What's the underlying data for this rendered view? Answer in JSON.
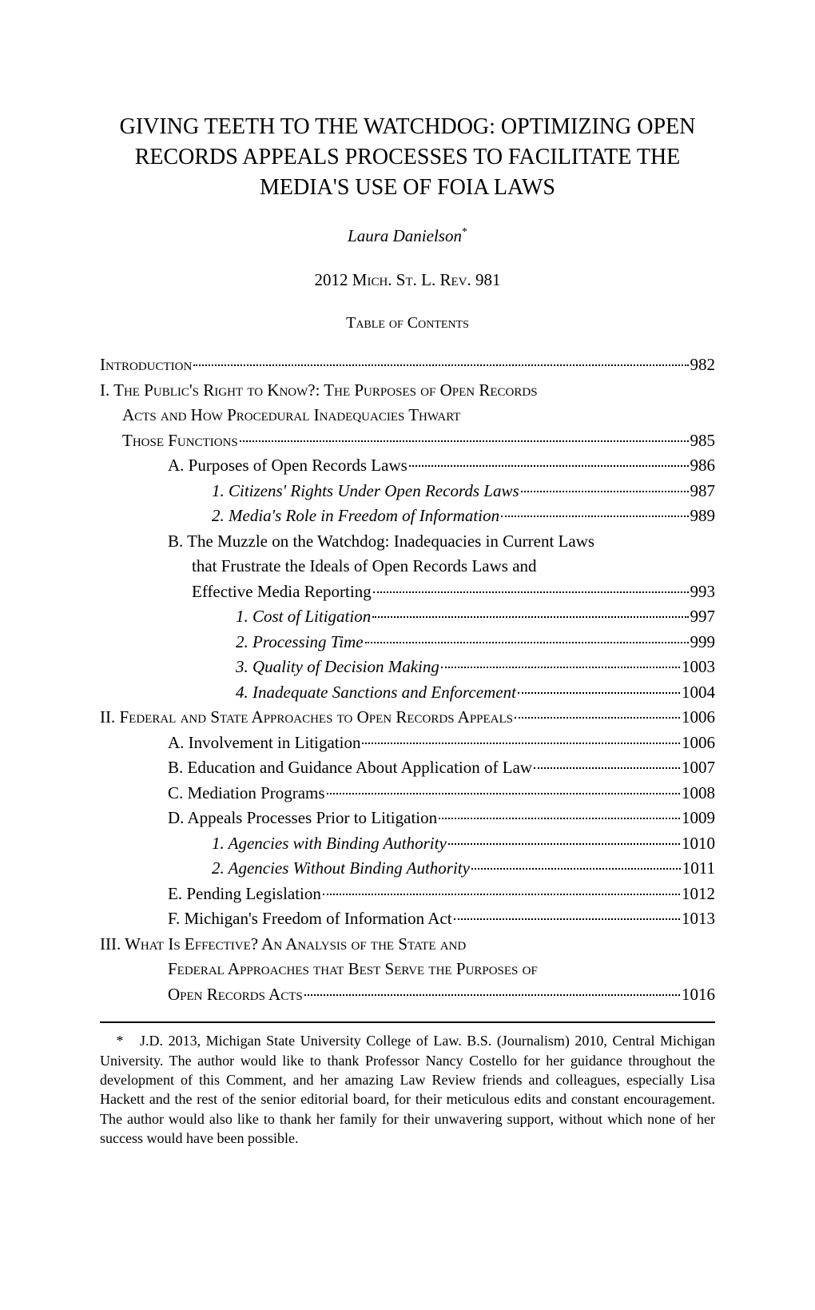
{
  "title": "GIVING TEETH TO THE WATCHDOG: OPTIMIZING OPEN RECORDS APPEALS PROCESSES TO FACILITATE THE MEDIA'S USE OF FOIA LAWS",
  "author": "Laura Danielson",
  "author_marker": "*",
  "citation_year": "2012",
  "citation_journal": "Mich. St. L. Rev.",
  "citation_page": "981",
  "toc_header": "Table of Contents",
  "toc": {
    "intro": {
      "label": "Introduction",
      "page": "982"
    },
    "part1": {
      "heading_l1": "I. The Public's Right to Know?: The Purposes of Open Records",
      "heading_l2": "Acts and How Procedural Inadequacies Thwart",
      "heading_l3": "Those Functions",
      "page": "985",
      "a": {
        "label": "A. Purposes of Open Records Laws",
        "page": "986"
      },
      "a1": {
        "label": "1. Citizens' Rights Under Open Records Laws",
        "page": "987"
      },
      "a2": {
        "label": "2. Media's Role in Freedom of Information",
        "page": "989"
      },
      "b_l1": "B. The Muzzle on the Watchdog: Inadequacies in Current Laws",
      "b_l2": "that Frustrate the Ideals of Open Records Laws and",
      "b_l3": "Effective Media Reporting",
      "b_page": "993",
      "b1": {
        "label": "1. Cost of Litigation",
        "page": "997"
      },
      "b2": {
        "label": "2. Processing Time",
        "page": "999"
      },
      "b3": {
        "label": "3. Quality of Decision Making",
        "page": "1003"
      },
      "b4": {
        "label": "4. Inadequate Sanctions and Enforcement",
        "page": "1004"
      }
    },
    "part2": {
      "heading": "II. Federal and State Approaches to Open Records Appeals",
      "page": "1006",
      "a": {
        "label": "A. Involvement in Litigation",
        "page": "1006"
      },
      "b": {
        "label": "B. Education and Guidance About Application of Law",
        "page": "1007"
      },
      "c": {
        "label": "C. Mediation Programs",
        "page": "1008"
      },
      "d": {
        "label": "D. Appeals Processes Prior to Litigation",
        "page": "1009"
      },
      "d1": {
        "label": "1. Agencies with Binding Authority",
        "page": "1010"
      },
      "d2": {
        "label": "2. Agencies Without Binding Authority",
        "page": "1011"
      },
      "e": {
        "label": "E. Pending Legislation",
        "page": "1012"
      },
      "f": {
        "label": "F. Michigan's Freedom of Information Act",
        "page": "1013"
      }
    },
    "part3": {
      "heading_l1": "III. What Is Effective? An Analysis of the State and",
      "heading_l2": "Federal Approaches that Best Serve the Purposes of",
      "heading_l3": "Open Records Acts",
      "page": "1016"
    }
  },
  "footnote": {
    "marker": "*",
    "text": "J.D. 2013, Michigan State University College of Law. B.S. (Journalism) 2010, Central Michigan University. The author would like to thank Professor Nancy Costello for her guidance throughout the development of this Comment, and her amazing Law Review friends and colleagues, especially Lisa Hackett and the rest of the senior editorial board, for their meticulous edits and constant encouragement. The author would also like to thank her family for their unwavering support, without which none of her success would have been possible."
  }
}
